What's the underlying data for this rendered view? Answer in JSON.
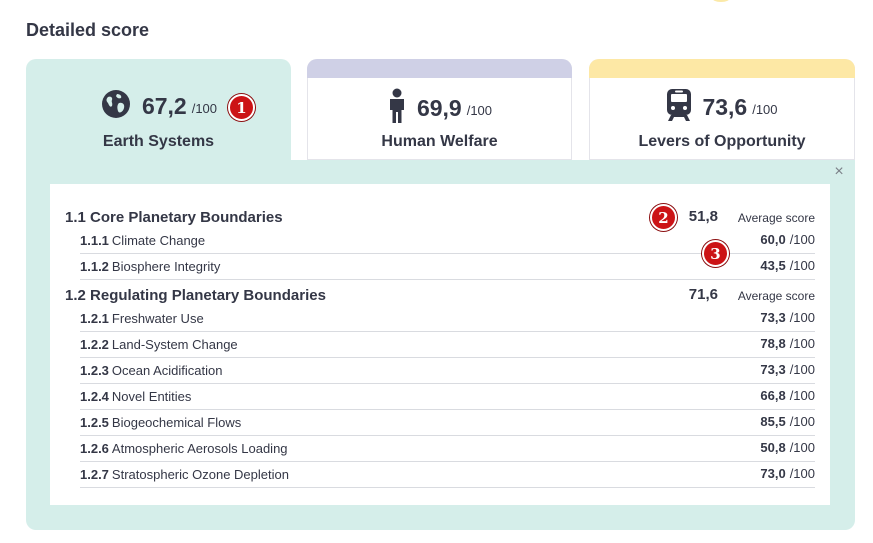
{
  "header": {
    "title": "Detailed score"
  },
  "tabs": [
    {
      "label": "Earth Systems",
      "score": "67,2",
      "max": "/100",
      "icon": "globe-icon",
      "stripe_color": "#d5eeea"
    },
    {
      "label": "Human Welfare",
      "score": "69,9",
      "max": "/100",
      "icon": "person-icon",
      "stripe_color": "#cfd0e6"
    },
    {
      "label": "Levers of Opportunity",
      "score": "73,6",
      "max": "/100",
      "icon": "train-icon",
      "stripe_color": "#fde8a5"
    }
  ],
  "badges": [
    "1",
    "2",
    "3"
  ],
  "close_label": "×",
  "groups": [
    {
      "code": "1.1",
      "label": "Core Planetary Boundaries",
      "score": "51,8",
      "avg_label": "Average score",
      "items": [
        {
          "code": "1.1.1",
          "name": "Climate Change",
          "value": "60,0",
          "max": "/100"
        },
        {
          "code": "1.1.2",
          "name": "Biosphere Integrity",
          "value": "43,5",
          "max": "/100"
        }
      ]
    },
    {
      "code": "1.2",
      "label": "Regulating Planetary Boundaries",
      "score": "71,6",
      "avg_label": "Average score",
      "items": [
        {
          "code": "1.2.1",
          "name": "Freshwater Use",
          "value": "73,3",
          "max": "/100"
        },
        {
          "code": "1.2.2",
          "name": "Land-System Change",
          "value": "78,8",
          "max": "/100"
        },
        {
          "code": "1.2.3",
          "name": "Ocean Acidification",
          "value": "73,3",
          "max": "/100"
        },
        {
          "code": "1.2.4",
          "name": "Novel Entities",
          "value": "66,8",
          "max": "/100"
        },
        {
          "code": "1.2.5",
          "name": "Biogeochemical Flows",
          "value": "85,5",
          "max": "/100"
        },
        {
          "code": "1.2.6",
          "name": "Atmospheric Aerosols Loading",
          "value": "50,8",
          "max": "/100"
        },
        {
          "code": "1.2.7",
          "name": "Stratospheric Ozone Depletion",
          "value": "73,0",
          "max": "/100"
        }
      ]
    }
  ],
  "colors": {
    "panel": "#d5eeea",
    "badge": "#cc1316",
    "text": "#343746"
  }
}
